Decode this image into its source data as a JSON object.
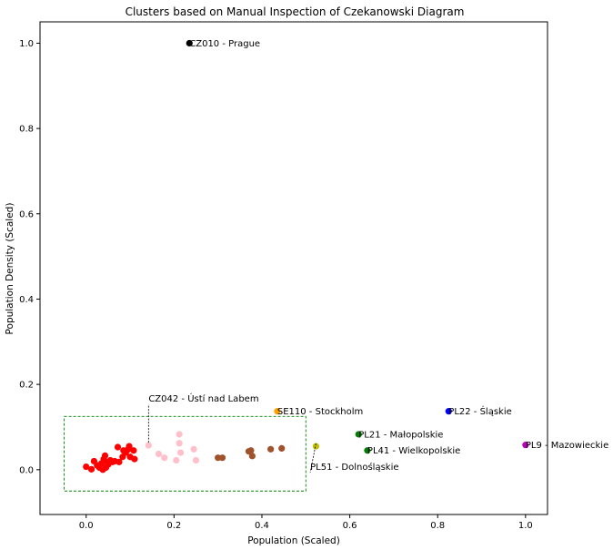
{
  "chart_data": {
    "type": "scatter",
    "title": "Clusters based on Manual Inspection of Czekanowski Diagram",
    "xlabel": "Population (Scaled)",
    "ylabel": "Population Density (Scaled)",
    "xlim": [
      -0.105,
      1.05
    ],
    "ylim": [
      -0.105,
      1.05
    ],
    "x_ticks": [
      0.0,
      0.2,
      0.4,
      0.6,
      0.8,
      1.0
    ],
    "y_ticks": [
      0.0,
      0.2,
      0.4,
      0.6,
      0.8,
      1.0
    ],
    "x_tick_labels": [
      "0.0",
      "0.2",
      "0.4",
      "0.6",
      "0.8",
      "1.0"
    ],
    "y_tick_labels": [
      "0.0",
      "0.2",
      "0.4",
      "0.6",
      "0.8",
      "1.0"
    ],
    "grid": false,
    "legend": "none",
    "colors": {
      "red": "#ff0000",
      "pink": "#ffc0cb",
      "brown": "#a0522d",
      "black": "#000000",
      "orange": "#ffa500",
      "green": "#008000",
      "olive": "#bfbf00",
      "blue": "#0000ff",
      "magenta": "#bf00bf",
      "box": "#008000"
    },
    "points": [
      {
        "x": 0.0,
        "y": 0.007,
        "color": "red"
      },
      {
        "x": 0.012,
        "y": 0.001,
        "color": "red"
      },
      {
        "x": 0.018,
        "y": 0.02,
        "color": "red"
      },
      {
        "x": 0.025,
        "y": 0.01,
        "color": "red"
      },
      {
        "x": 0.03,
        "y": 0.005,
        "color": "red"
      },
      {
        "x": 0.035,
        "y": 0.015,
        "color": "red"
      },
      {
        "x": 0.038,
        "y": 0.0,
        "color": "red"
      },
      {
        "x": 0.04,
        "y": 0.025,
        "color": "red"
      },
      {
        "x": 0.043,
        "y": 0.033,
        "color": "red"
      },
      {
        "x": 0.045,
        "y": 0.005,
        "color": "red"
      },
      {
        "x": 0.048,
        "y": 0.018,
        "color": "red"
      },
      {
        "x": 0.05,
        "y": 0.012,
        "color": "red"
      },
      {
        "x": 0.055,
        "y": 0.022,
        "color": "red"
      },
      {
        "x": 0.06,
        "y": 0.018,
        "color": "red"
      },
      {
        "x": 0.065,
        "y": 0.02,
        "color": "red"
      },
      {
        "x": 0.072,
        "y": 0.053,
        "color": "red"
      },
      {
        "x": 0.075,
        "y": 0.018,
        "color": "red"
      },
      {
        "x": 0.083,
        "y": 0.03,
        "color": "red"
      },
      {
        "x": 0.085,
        "y": 0.045,
        "color": "red"
      },
      {
        "x": 0.09,
        "y": 0.04,
        "color": "red"
      },
      {
        "x": 0.095,
        "y": 0.047,
        "color": "red"
      },
      {
        "x": 0.098,
        "y": 0.055,
        "color": "red"
      },
      {
        "x": 0.1,
        "y": 0.03,
        "color": "red"
      },
      {
        "x": 0.108,
        "y": 0.045,
        "color": "red"
      },
      {
        "x": 0.11,
        "y": 0.025,
        "color": "red"
      },
      {
        "x": 0.142,
        "y": 0.057,
        "color": "pink"
      },
      {
        "x": 0.165,
        "y": 0.037,
        "color": "pink"
      },
      {
        "x": 0.178,
        "y": 0.028,
        "color": "pink"
      },
      {
        "x": 0.205,
        "y": 0.022,
        "color": "pink"
      },
      {
        "x": 0.212,
        "y": 0.083,
        "color": "pink"
      },
      {
        "x": 0.212,
        "y": 0.062,
        "color": "pink"
      },
      {
        "x": 0.215,
        "y": 0.04,
        "color": "pink"
      },
      {
        "x": 0.245,
        "y": 0.048,
        "color": "pink"
      },
      {
        "x": 0.25,
        "y": 0.022,
        "color": "pink"
      },
      {
        "x": 0.3,
        "y": 0.028,
        "color": "brown"
      },
      {
        "x": 0.31,
        "y": 0.028,
        "color": "brown"
      },
      {
        "x": 0.37,
        "y": 0.043,
        "color": "brown"
      },
      {
        "x": 0.375,
        "y": 0.045,
        "color": "brown"
      },
      {
        "x": 0.378,
        "y": 0.032,
        "color": "brown"
      },
      {
        "x": 0.42,
        "y": 0.048,
        "color": "brown"
      },
      {
        "x": 0.445,
        "y": 0.05,
        "color": "brown"
      },
      {
        "x": 0.235,
        "y": 1.0,
        "color": "black"
      },
      {
        "x": 0.435,
        "y": 0.137,
        "color": "orange"
      },
      {
        "x": 0.62,
        "y": 0.083,
        "color": "green"
      },
      {
        "x": 0.64,
        "y": 0.045,
        "color": "green"
      },
      {
        "x": 0.523,
        "y": 0.055,
        "color": "olive"
      },
      {
        "x": 0.825,
        "y": 0.137,
        "color": "blue"
      },
      {
        "x": 1.0,
        "y": 0.058,
        "color": "magenta"
      }
    ],
    "annotations": [
      {
        "text": "CZ010 - Prague",
        "x": 0.235,
        "y": 1.0
      },
      {
        "text": "SE110 - Stockholm",
        "x": 0.435,
        "y": 0.137
      },
      {
        "text": "PL22 - Śląskie",
        "x": 0.825,
        "y": 0.137
      },
      {
        "text": "PL21 - Małopolskie",
        "x": 0.62,
        "y": 0.083
      },
      {
        "text": "PL41 - Wielkopolskie",
        "x": 0.64,
        "y": 0.045
      },
      {
        "text": "PL9 - Mazowieckie",
        "x": 1.0,
        "y": 0.058
      },
      {
        "text": "CZ042 - Ústí nad Labem",
        "x": 0.142,
        "y": 0.057,
        "text_x": 0.142,
        "text_y": 0.16
      },
      {
        "text": "PL51 - Dolnośląskie",
        "x": 0.523,
        "y": 0.055,
        "text_x": 0.51,
        "text_y": 0.0
      }
    ],
    "box": {
      "x0": -0.05,
      "x1": 0.5,
      "y0": -0.05,
      "y1": 0.125
    }
  }
}
